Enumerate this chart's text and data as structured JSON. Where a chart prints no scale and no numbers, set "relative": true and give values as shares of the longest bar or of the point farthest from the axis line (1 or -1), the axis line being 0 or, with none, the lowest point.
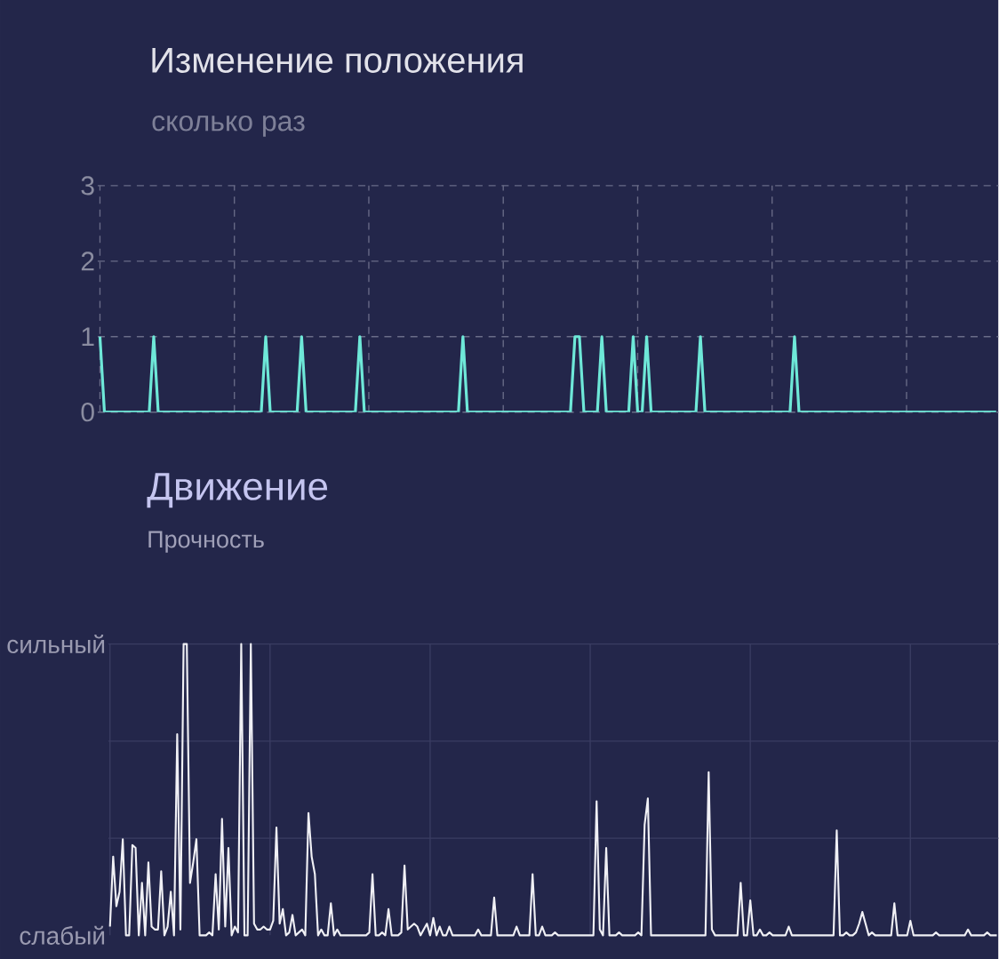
{
  "chart_data": [
    {
      "type": "line",
      "title": "Изменение положения",
      "subtitle": "сколько раз",
      "color": "#6ee8d8",
      "categories": [
        null,
        null,
        null,
        null,
        null,
        null,
        null,
        null,
        null,
        null,
        null,
        null,
        null,
        null,
        null,
        null,
        null,
        null,
        null,
        null,
        null,
        null,
        null,
        null,
        null,
        null,
        null,
        null,
        null,
        null,
        null,
        null,
        null,
        null,
        null,
        null,
        null,
        null,
        null,
        null,
        null,
        null,
        null,
        null,
        null,
        null,
        null,
        null,
        null,
        null,
        null,
        null,
        null,
        null,
        null,
        null,
        null,
        null,
        null,
        null,
        null,
        null,
        null,
        null,
        null,
        null,
        null,
        null,
        null,
        null,
        null,
        null,
        null,
        null,
        null,
        null,
        null,
        null,
        null,
        null,
        null,
        null,
        null,
        null,
        null,
        null,
        null,
        null,
        null,
        null,
        null,
        null,
        null,
        null,
        null,
        null,
        null,
        null,
        null,
        null,
        null,
        null,
        null,
        null,
        null,
        null,
        null,
        null,
        null,
        null,
        null,
        null,
        null,
        null,
        null,
        null,
        null,
        null,
        null,
        null,
        null,
        null,
        null,
        null,
        null,
        null,
        null,
        null,
        null,
        null,
        null,
        null,
        null,
        null,
        null,
        null,
        null,
        null,
        null,
        null,
        null,
        null,
        null,
        null,
        null,
        null,
        null,
        null,
        null,
        null,
        null,
        null,
        null,
        null,
        null,
        null,
        null,
        null,
        null,
        null,
        null,
        null,
        null,
        null,
        null,
        null,
        null,
        null,
        null,
        null,
        null,
        null,
        null,
        null,
        null,
        null,
        null,
        null,
        null,
        null,
        null,
        null,
        null,
        null,
        null,
        null,
        null,
        null,
        null,
        null,
        null,
        null,
        null,
        null,
        null,
        null,
        null,
        null,
        null,
        null,
        null
      ],
      "values": [
        1,
        0,
        0,
        0,
        0,
        0,
        0,
        0,
        0,
        0,
        0,
        0,
        1,
        0,
        0,
        0,
        0,
        0,
        0,
        0,
        0,
        0,
        0,
        0,
        0,
        0,
        0,
        0,
        0,
        0,
        0,
        0,
        0,
        0,
        0,
        0,
        0,
        1,
        0,
        0,
        0,
        0,
        0,
        0,
        0,
        1,
        0,
        0,
        0,
        0,
        0,
        0,
        0,
        0,
        0,
        0,
        0,
        0,
        1,
        0,
        0,
        0,
        0,
        0,
        0,
        0,
        0,
        0,
        0,
        0,
        0,
        0,
        0,
        0,
        0,
        0,
        0,
        0,
        0,
        0,
        0,
        1,
        0,
        0,
        0,
        0,
        0,
        0,
        0,
        0,
        0,
        0,
        0,
        0,
        0,
        0,
        0,
        0,
        0,
        0,
        0,
        0,
        0,
        0,
        0,
        0,
        1,
        1,
        0,
        0,
        0,
        0,
        1,
        0,
        0,
        0,
        0,
        0,
        0,
        1,
        0,
        0,
        1,
        0,
        0,
        0,
        0,
        0,
        0,
        0,
        0,
        0,
        0,
        0,
        1,
        0,
        0,
        0,
        0,
        0,
        0,
        0,
        0,
        0,
        0,
        0,
        0,
        0,
        0,
        0,
        0,
        0,
        0,
        0,
        0,
        1,
        0,
        0,
        0,
        0,
        0,
        0,
        0,
        0,
        0,
        0,
        0,
        0,
        0,
        0,
        0,
        0,
        0,
        0,
        0,
        0,
        0,
        0,
        0,
        0,
        0,
        0,
        0,
        0,
        0,
        0,
        0,
        0,
        0,
        0,
        0,
        0,
        0,
        0,
        0,
        0,
        0,
        0,
        0,
        0,
        0
      ],
      "ylim": [
        0,
        3
      ],
      "yticks": [
        0,
        1,
        2,
        3
      ],
      "grid": true,
      "tick_labels": "y"
    },
    {
      "type": "line",
      "title": "Движение",
      "subtitle": "Прочность",
      "color": "#f0f0f5",
      "categories": [
        null,
        null,
        null,
        null,
        null,
        null,
        null,
        null,
        null,
        null,
        null,
        null,
        null,
        null,
        null,
        null,
        null,
        null,
        null,
        null,
        null,
        null,
        null,
        null,
        null,
        null,
        null,
        null,
        null,
        null,
        null,
        null,
        null,
        null,
        null,
        null,
        null,
        null,
        null,
        null,
        null,
        null,
        null,
        null,
        null,
        null,
        null,
        null,
        null,
        null,
        null,
        null,
        null,
        null,
        null,
        null,
        null,
        null,
        null,
        null,
        null,
        null,
        null,
        null,
        null,
        null,
        null,
        null,
        null,
        null,
        null,
        null,
        null,
        null,
        null,
        null,
        null,
        null,
        null,
        null,
        null,
        null,
        null,
        null,
        null,
        null,
        null,
        null,
        null,
        null,
        null,
        null,
        null,
        null,
        null,
        null,
        null,
        null,
        null,
        null,
        null,
        null,
        null,
        null,
        null,
        null,
        null,
        null,
        null,
        null,
        null,
        null,
        null,
        null,
        null,
        null,
        null,
        null,
        null,
        null,
        null,
        null,
        null,
        null,
        null,
        null,
        null,
        null,
        null,
        null,
        null,
        null,
        null,
        null,
        null,
        null,
        null,
        null,
        null,
        null,
        null,
        null,
        null,
        null,
        null,
        null,
        null,
        null,
        null,
        null,
        null,
        null,
        null,
        null,
        null,
        null,
        null,
        null,
        null,
        null,
        null,
        null,
        null,
        null,
        null,
        null,
        null,
        null,
        null,
        null,
        null,
        null,
        null,
        null,
        null,
        null,
        null,
        null,
        null,
        null,
        null,
        null,
        null,
        null,
        null,
        null,
        null,
        null,
        null,
        null,
        null,
        null,
        null,
        null,
        null,
        null,
        null,
        null,
        null,
        null,
        null,
        null,
        null,
        null,
        null,
        null,
        null,
        null,
        null,
        null,
        null,
        null,
        null,
        null,
        null,
        null,
        null,
        null,
        null,
        null,
        null,
        null,
        null,
        null,
        null,
        null,
        null,
        null,
        null,
        null,
        null,
        null,
        null,
        null,
        null,
        null,
        null,
        null,
        null,
        null,
        null,
        null,
        null,
        null,
        null,
        null,
        null,
        null,
        null,
        null,
        null,
        null,
        null,
        null,
        null,
        null,
        null,
        null,
        null,
        null,
        null,
        null,
        null,
        null,
        null,
        null,
        null,
        null,
        null,
        null,
        null,
        null,
        null,
        null,
        null,
        null,
        null,
        null
      ],
      "values": [
        0.03,
        0.27,
        0.1,
        0.15,
        0.33,
        0,
        0,
        0.31,
        0.3,
        0,
        0.18,
        0,
        0.25,
        0.03,
        0.02,
        0.02,
        0.22,
        0,
        0.03,
        0.15,
        0,
        0.69,
        0.02,
        1,
        1,
        0.18,
        0.25,
        0.33,
        0,
        0,
        0,
        0.01,
        0,
        0.21,
        0.02,
        0.4,
        0.03,
        0.3,
        0,
        0.03,
        0.01,
        1,
        0,
        0,
        1,
        0.04,
        0.02,
        0.02,
        0.03,
        0.02,
        0.02,
        0.05,
        0.37,
        0.04,
        0.09,
        0,
        0.01,
        0.07,
        0,
        0.01,
        0.02,
        0,
        0.42,
        0.27,
        0.21,
        0,
        0.02,
        0,
        0,
        0.11,
        0,
        0.02,
        0,
        0,
        0,
        0,
        0,
        0,
        0,
        0,
        0,
        0.01,
        0.21,
        0,
        0,
        0.01,
        0,
        0.09,
        0,
        0,
        0,
        0.01,
        0.24,
        0.02,
        0.03,
        0.04,
        0.03,
        0,
        0.02,
        0.04,
        0,
        0.06,
        0,
        0.03,
        0,
        0,
        0.03,
        0,
        0,
        0,
        0,
        0,
        0,
        0,
        0,
        0.02,
        0,
        0,
        0,
        0,
        0.13,
        0,
        0,
        0,
        0,
        0,
        0,
        0.03,
        0,
        0,
        0,
        0,
        0.21,
        0,
        0,
        0.03,
        0,
        0,
        0,
        0.01,
        0,
        0,
        0,
        0,
        0,
        0,
        0,
        0,
        0,
        0,
        0,
        0,
        0.46,
        0.02,
        0,
        0.3,
        0,
        0,
        0,
        0.01,
        0,
        0,
        0,
        0,
        0,
        0.01,
        0,
        0.38,
        0.47,
        0,
        0,
        0,
        0,
        0,
        0,
        0,
        0,
        0,
        0,
        0,
        0,
        0,
        0,
        0,
        0,
        0,
        0,
        0.56,
        0.02,
        0,
        0,
        0,
        0,
        0,
        0,
        0,
        0,
        0.18,
        0,
        0,
        0.12,
        0,
        0,
        0.02,
        0,
        0,
        0.01,
        0,
        0,
        0,
        0,
        0,
        0.03,
        0,
        0,
        0,
        0,
        0,
        0,
        0,
        0,
        0,
        0,
        0,
        0,
        0,
        0,
        0.36,
        0,
        0,
        0.01,
        0,
        0,
        0.01,
        0.04,
        0.08,
        0.04,
        0,
        0.01,
        0,
        0,
        0,
        0,
        0,
        0,
        0.11,
        0,
        0,
        0,
        0,
        0.05,
        0,
        0,
        0,
        0,
        0,
        0,
        0,
        0.01,
        0,
        0,
        0,
        0,
        0,
        0,
        0,
        0,
        0,
        0.02,
        0,
        0,
        0,
        0,
        0,
        0.01,
        0,
        0,
        0
      ],
      "relative": true,
      "annotations": [
        "сильный",
        "слабый"
      ],
      "grid": true,
      "tick_labels": false
    }
  ]
}
